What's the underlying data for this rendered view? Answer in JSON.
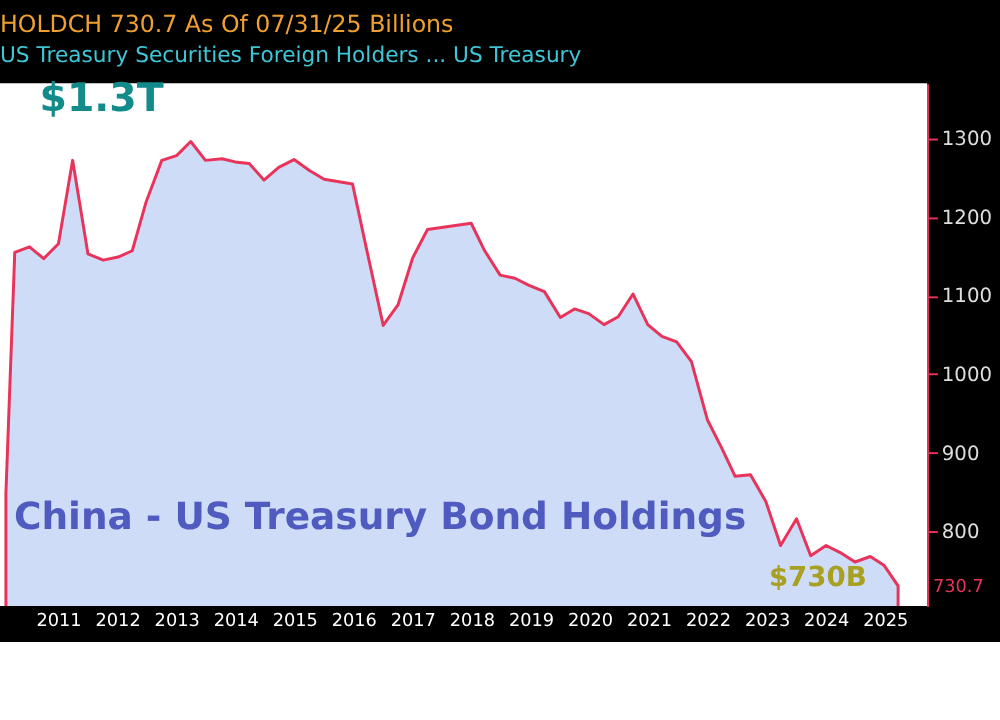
{
  "chart_data": {
    "type": "area",
    "title": "China - US Treasury Bond Holdings",
    "subtitle": "US Treasury Securities Foreign Holders ... US Treasury",
    "annotations": [
      "HOLDCH  730.7  As Of 07/31/25  Billions",
      "$1.3T",
      "$730B",
      "730.7"
    ],
    "x": [
      2010.6,
      2010.75,
      2011.0,
      2011.24,
      2011.49,
      2011.73,
      2011.99,
      2012.25,
      2012.5,
      2012.74,
      2012.97,
      2013.24,
      2013.49,
      2013.73,
      2013.98,
      2014.26,
      2014.48,
      2014.72,
      2014.97,
      2015.22,
      2015.48,
      2015.74,
      2015.99,
      2016.47,
      2016.72,
      2016.99,
      2017.24,
      2017.49,
      2017.74,
      2018.48,
      2018.7,
      2018.97,
      2019.22,
      2019.46,
      2019.72,
      2019.99,
      2020.23,
      2020.47,
      2020.73,
      2020.97,
      2021.22,
      2021.47,
      2021.71,
      2021.96,
      2022.21,
      2022.48,
      2022.73,
      2022.95,
      2023.21,
      2023.47,
      2023.72,
      2023.99,
      2024.23,
      2024.49,
      2024.73,
      2024.98,
      2025.24,
      2025.47,
      2025.71
    ],
    "series": [
      {
        "color": "#cfdcf8",
        "values": [
          848,
          1155,
          1162,
          1147,
          1166,
          1272,
          1153,
          1145,
          1149,
          1157,
          1218,
          1272,
          1278,
          1296,
          1272,
          1274,
          1270,
          1268,
          1247,
          1263,
          1273,
          1259,
          1248,
          1242,
          1155,
          1062,
          1088,
          1148,
          1184,
          1192,
          1158,
          1126,
          1122,
          1113,
          1105,
          1072,
          1083,
          1077,
          1063,
          1073,
          1102,
          1063,
          1048,
          1041,
          1016,
          942,
          905,
          870,
          872,
          838,
          782,
          816,
          769,
          782,
          773,
          761,
          768,
          757,
          730.7
        ]
      }
    ],
    "xlim": [
      2010.5,
      2026.2
    ],
    "xticks": [
      {
        "value": 2011.5,
        "label": "2011"
      },
      {
        "value": 2012.5,
        "label": "2012"
      },
      {
        "value": 2013.5,
        "label": "2013"
      },
      {
        "value": 2014.5,
        "label": "2014"
      },
      {
        "value": 2015.5,
        "label": "2015"
      },
      {
        "value": 2016.5,
        "label": "2016"
      },
      {
        "value": 2017.5,
        "label": "2017"
      },
      {
        "value": 2018.5,
        "label": "2018"
      },
      {
        "value": 2019.5,
        "label": "2019"
      },
      {
        "value": 2020.5,
        "label": "2020"
      },
      {
        "value": 2021.5,
        "label": "2021"
      },
      {
        "value": 2022.5,
        "label": "2022"
      },
      {
        "value": 2023.5,
        "label": "2023"
      },
      {
        "value": 2024.5,
        "label": "2024"
      },
      {
        "value": 2025.5,
        "label": "2025"
      }
    ],
    "ylim": [
      705,
      1370
    ],
    "yticks": [
      800,
      900,
      1000,
      1100,
      1200,
      1300
    ],
    "grid": false
  }
}
